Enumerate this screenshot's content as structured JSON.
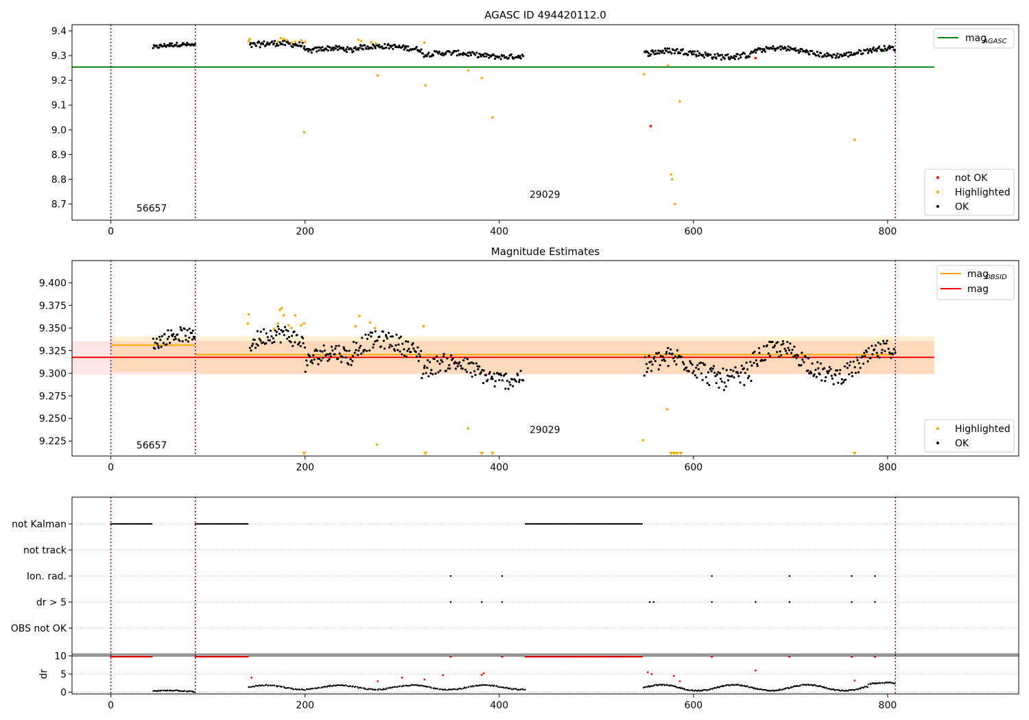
{
  "chart_data": [
    {
      "panel": "top",
      "type": "scatter",
      "title": "AGASC ID 494420112.0",
      "xlabel": "",
      "ylabel": "",
      "xlim": [
        -40,
        935
      ],
      "ylim": [
        8.635,
        9.425
      ],
      "xticks": [
        0,
        200,
        400,
        600,
        800
      ],
      "yticks": [
        8.7,
        8.8,
        8.9,
        9.0,
        9.1,
        9.2,
        9.3,
        9.4
      ],
      "ytick_labels": [
        "8.7",
        "8.8",
        "8.9",
        "9.0",
        "9.1",
        "9.2",
        "9.3",
        "9.4"
      ],
      "obs_boundaries": [
        0,
        87,
        808
      ],
      "obsid_labels": [
        {
          "x": 42,
          "y": 8.67,
          "text": "56657"
        },
        {
          "x": 447,
          "y": 8.725,
          "text": "29029"
        }
      ],
      "hlines": [
        {
          "name": "mag_AGASC",
          "y": 9.254,
          "x": [
            -40,
            848
          ],
          "color": "#008000"
        }
      ],
      "legend_top": {
        "position": "upper-right",
        "entries": [
          {
            "main": "mag",
            "sub": "AGASC",
            "color": "#008000"
          }
        ]
      },
      "legend_bottom": {
        "position": "lower-right",
        "entries": [
          {
            "label": "not OK",
            "color": "#ff0000"
          },
          {
            "label": "Highlighted",
            "color": "#ffa500"
          },
          {
            "label": "OK",
            "color": "#000000"
          }
        ]
      },
      "highlighted": [
        [
          142,
          9.358
        ],
        [
          143,
          9.367
        ],
        [
          172,
          9.356
        ],
        [
          175,
          9.371
        ],
        [
          178,
          9.367
        ],
        [
          181,
          9.363
        ],
        [
          186,
          9.353
        ],
        [
          190,
          9.356
        ],
        [
          196,
          9.361
        ],
        [
          200,
          9.355
        ],
        [
          255,
          9.364
        ],
        [
          258,
          9.359
        ],
        [
          268,
          9.355
        ],
        [
          273,
          9.35
        ],
        [
          275,
          9.22
        ],
        [
          323,
          9.352
        ],
        [
          324,
          9.18
        ],
        [
          368,
          9.24
        ],
        [
          382,
          9.21
        ],
        [
          393,
          9.05
        ],
        [
          199,
          8.99
        ],
        [
          549,
          9.225
        ],
        [
          574,
          9.26
        ],
        [
          577,
          8.82
        ],
        [
          578,
          8.8
        ],
        [
          581,
          8.7
        ],
        [
          586,
          9.115
        ],
        [
          766,
          8.96
        ]
      ],
      "not_ok": [
        [
          556,
          9.015
        ],
        [
          664,
          9.29
        ]
      ],
      "ok_segments": [
        {
          "x0": 43,
          "x1": 87,
          "n": 50,
          "base": 9.333,
          "amp": 0.012,
          "noise": 0.008
        },
        {
          "x0": 143,
          "x1": 200,
          "n": 60,
          "base": 9.34,
          "amp": 0.01,
          "noise": 0.012
        },
        {
          "x0": 200,
          "x1": 250,
          "n": 55,
          "base": 9.315,
          "amp": 0.015,
          "noise": 0.01
        },
        {
          "x0": 250,
          "x1": 320,
          "n": 75,
          "base": 9.33,
          "amp": 0.008,
          "noise": 0.01
        },
        {
          "x0": 320,
          "x1": 425,
          "n": 105,
          "base": 9.303,
          "amp": 0.008,
          "noise": 0.01
        },
        {
          "x0": 549,
          "x1": 660,
          "n": 115,
          "base": 9.307,
          "amp": 0.012,
          "noise": 0.012
        },
        {
          "x0": 660,
          "x1": 808,
          "n": 150,
          "base": 9.315,
          "amp": 0.015,
          "noise": 0.01
        }
      ]
    },
    {
      "panel": "middle",
      "type": "scatter",
      "title": "Magnitude Estimates",
      "xlabel": "",
      "ylabel": "",
      "xlim": [
        -40,
        935
      ],
      "ylim": [
        9.2085,
        9.4245
      ],
      "xticks": [
        0,
        200,
        400,
        600,
        800
      ],
      "yticks": [
        9.225,
        9.25,
        9.275,
        9.3,
        9.325,
        9.35,
        9.375,
        9.4
      ],
      "ytick_labels": [
        "9.225",
        "9.250",
        "9.275",
        "9.300",
        "9.325",
        "9.350",
        "9.375",
        "9.400"
      ],
      "obs_boundaries": [
        0,
        87,
        808
      ],
      "obsid_labels": [
        {
          "x": 42,
          "y": 9.217,
          "text": "56657"
        },
        {
          "x": 447,
          "y": 9.234,
          "text": "29029"
        }
      ],
      "bands": [
        {
          "x": [
            -40,
            848
          ],
          "y": [
            9.2985,
            9.3355
          ],
          "color": "#ff0000",
          "opacity": 0.1
        },
        {
          "x": [
            0,
            87
          ],
          "y": [
            9.3015,
            9.3405
          ],
          "color": "#ffa500",
          "opacity": 0.18
        },
        {
          "x": [
            87,
            848
          ],
          "y": [
            9.2995,
            9.3405
          ],
          "color": "#ffa500",
          "opacity": 0.18
        }
      ],
      "hlines": [
        {
          "name": "mag_OBSID",
          "y": 9.331,
          "x": [
            0,
            87
          ],
          "color": "#ffa500"
        },
        {
          "name": "mag_OBSID",
          "y": 9.3205,
          "x": [
            87,
            808
          ],
          "color": "#ffa500"
        },
        {
          "name": "mag",
          "y": 9.3175,
          "x": [
            -40,
            848
          ],
          "color": "#ff0000"
        }
      ],
      "legend_top": {
        "position": "upper-right",
        "entries": [
          {
            "main": "mag",
            "sub": "OBSID",
            "color": "#ffa500"
          },
          {
            "main": "mag",
            "sub": "",
            "color": "#ff0000"
          }
        ]
      },
      "legend_bottom": {
        "position": "lower-right",
        "entries": [
          {
            "label": "Highlighted",
            "color": "#ffa500"
          },
          {
            "label": "OK",
            "color": "#000000"
          }
        ]
      },
      "highlighted": [
        [
          141,
          9.355
        ],
        [
          142,
          9.365
        ],
        [
          168,
          9.349
        ],
        [
          172,
          9.355
        ],
        [
          174,
          9.37
        ],
        [
          176,
          9.372
        ],
        [
          178,
          9.364
        ],
        [
          183,
          9.353
        ],
        [
          186,
          9.35
        ],
        [
          190,
          9.364
        ],
        [
          196,
          9.353
        ],
        [
          199,
          9.355
        ],
        [
          252,
          9.352
        ],
        [
          256,
          9.363
        ],
        [
          267,
          9.356
        ],
        [
          272,
          9.35
        ],
        [
          274,
          9.221
        ],
        [
          322,
          9.352
        ],
        [
          368,
          9.239
        ],
        [
          548,
          9.226
        ],
        [
          573,
          9.26
        ]
      ],
      "below_axis": [
        199,
        324,
        382,
        393,
        577,
        580,
        583,
        587,
        766
      ],
      "ok_segments": [
        {
          "x0": 43,
          "x1": 87,
          "n": 50,
          "base": 9.331,
          "amp": 0.012,
          "noise": 0.008
        },
        {
          "x0": 143,
          "x1": 200,
          "n": 60,
          "base": 9.332,
          "amp": 0.012,
          "noise": 0.01
        },
        {
          "x0": 200,
          "x1": 250,
          "n": 55,
          "base": 9.31,
          "amp": 0.014,
          "noise": 0.01
        },
        {
          "x0": 250,
          "x1": 320,
          "n": 75,
          "base": 9.327,
          "amp": 0.01,
          "noise": 0.01
        },
        {
          "x0": 320,
          "x1": 425,
          "n": 105,
          "base": 9.302,
          "amp": 0.01,
          "noise": 0.01
        },
        {
          "x0": 549,
          "x1": 660,
          "n": 115,
          "base": 9.305,
          "amp": 0.012,
          "noise": 0.012
        },
        {
          "x0": 660,
          "x1": 808,
          "n": 150,
          "base": 9.312,
          "amp": 0.015,
          "noise": 0.01
        }
      ]
    },
    {
      "panel": "flags",
      "type": "scatter",
      "title": "",
      "xlim": [
        -40,
        935
      ],
      "categories": [
        "not Kalman",
        "not track",
        "Ion. rad.",
        "dr > 5",
        "OBS not OK"
      ],
      "obs_boundaries": [
        0,
        87,
        808
      ],
      "flag_ranges": {
        "not Kalman": [
          [
            0,
            43
          ],
          [
            87,
            141
          ],
          [
            427,
            548
          ]
        ]
      },
      "flag_points": {
        "Ion. rad.": [
          350,
          403,
          619,
          699,
          763,
          787
        ],
        "dr > 5": [
          350,
          382,
          403,
          555,
          559,
          619,
          664,
          699,
          763,
          787
        ]
      }
    },
    {
      "panel": "dr",
      "type": "scatter",
      "title": "",
      "xlabel": "",
      "ylabel": "dr",
      "xlim": [
        -40,
        935
      ],
      "ylim": [
        -0.5,
        10.5
      ],
      "xticks": [
        0,
        200,
        400,
        600,
        800
      ],
      "yticks": [
        0,
        5,
        10
      ],
      "ytick_labels": [
        "0",
        "5",
        "10"
      ],
      "obs_boundaries": [
        0,
        87,
        808
      ],
      "clipped_at_10": [
        [
          0,
          43
        ],
        [
          87,
          141
        ],
        [
          427,
          548
        ]
      ],
      "clipped_points": [
        350,
        403,
        619,
        699,
        763,
        787
      ],
      "high_points": [
        [
          145,
          4
        ],
        [
          275,
          3
        ],
        [
          300,
          4
        ],
        [
          323,
          3.5
        ],
        [
          342,
          4.7
        ],
        [
          382,
          4.8
        ],
        [
          384,
          5.2
        ],
        [
          553,
          5.5
        ],
        [
          557,
          5
        ],
        [
          580,
          4.5
        ],
        [
          586,
          3
        ],
        [
          664,
          6
        ],
        [
          766,
          3.2
        ]
      ],
      "low_segments": [
        {
          "x0": 43,
          "x1": 87,
          "n": 40,
          "base": 0.2,
          "amp": 0.3
        },
        {
          "x0": 141,
          "x1": 427,
          "n": 230,
          "base": 1.3,
          "amp": 0.6
        },
        {
          "x0": 548,
          "x1": 780,
          "n": 220,
          "base": 1.2,
          "amp": 0.8
        },
        {
          "x0": 780,
          "x1": 808,
          "n": 25,
          "base": 2.2,
          "amp": 0.4
        }
      ]
    }
  ]
}
